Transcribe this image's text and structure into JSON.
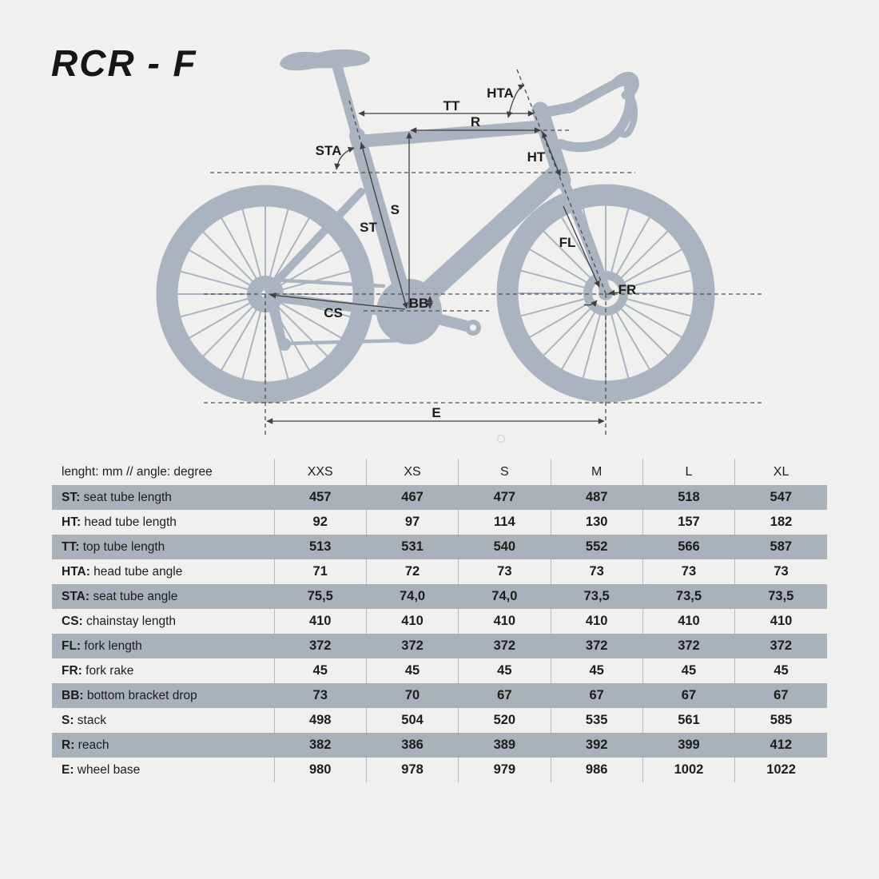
{
  "title": "RCR - F",
  "diagram": {
    "labels": {
      "tt": "TT",
      "r": "R",
      "hta": "HTA",
      "sta": "STA",
      "ht": "HT",
      "s": "S",
      "st": "ST",
      "cs": "CS",
      "bb": "BB",
      "fl": "FL",
      "fr": "FR",
      "e": "E"
    },
    "colors": {
      "silhouette": "#aab4c0",
      "annotation_line": "#3f3f3f",
      "dashed_line": "#4d4d4d"
    }
  },
  "table": {
    "unit_note": "lenght: mm // angle: degree",
    "columns": [
      "XXS",
      "XS",
      "S",
      "M",
      "L",
      "XL"
    ],
    "stripe_color": "#a9b2bb",
    "rows": [
      {
        "code": "ST",
        "label": "seat tube length",
        "values": [
          "457",
          "467",
          "477",
          "487",
          "518",
          "547"
        ]
      },
      {
        "code": "HT",
        "label": "head tube length",
        "values": [
          "92",
          "97",
          "114",
          "130",
          "157",
          "182"
        ]
      },
      {
        "code": "TT",
        "label": "top tube length",
        "values": [
          "513",
          "531",
          "540",
          "552",
          "566",
          "587"
        ]
      },
      {
        "code": "HTA",
        "label": "head tube angle",
        "values": [
          "71",
          "72",
          "73",
          "73",
          "73",
          "73"
        ]
      },
      {
        "code": "STA",
        "label": "seat tube angle",
        "values": [
          "75,5",
          "74,0",
          "74,0",
          "73,5",
          "73,5",
          "73,5"
        ]
      },
      {
        "code": "CS",
        "label": "chainstay length",
        "values": [
          "410",
          "410",
          "410",
          "410",
          "410",
          "410"
        ]
      },
      {
        "code": "FL",
        "label": "fork length",
        "values": [
          "372",
          "372",
          "372",
          "372",
          "372",
          "372"
        ]
      },
      {
        "code": "FR",
        "label": "fork rake",
        "values": [
          "45",
          "45",
          "45",
          "45",
          "45",
          "45"
        ]
      },
      {
        "code": "BB",
        "label": "bottom bracket drop",
        "values": [
          "73",
          "70",
          "67",
          "67",
          "67",
          "67"
        ]
      },
      {
        "code": "S",
        "label": "stack",
        "values": [
          "498",
          "504",
          "520",
          "535",
          "561",
          "585"
        ]
      },
      {
        "code": "R",
        "label": "reach",
        "values": [
          "382",
          "386",
          "389",
          "392",
          "399",
          "412"
        ]
      },
      {
        "code": "E",
        "label": "wheel base",
        "values": [
          "980",
          "978",
          "979",
          "986",
          "1002",
          "1022"
        ]
      }
    ]
  }
}
